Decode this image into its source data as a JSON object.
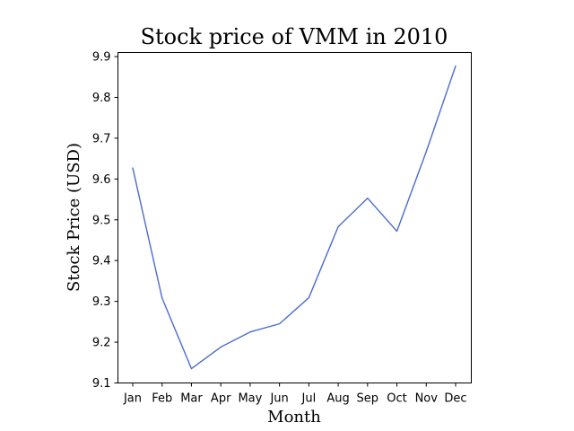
{
  "chart_data": {
    "type": "line",
    "title": "Stock price of VMM in 2010",
    "xlabel": "Month",
    "ylabel": "Stock Price (USD)",
    "categories": [
      "Jan",
      "Feb",
      "Mar",
      "Apr",
      "May",
      "Jun",
      "Jul",
      "Aug",
      "Sep",
      "Oct",
      "Nov",
      "Dec"
    ],
    "series": [
      {
        "values": [
          9.627,
          9.308,
          9.135,
          9.188,
          9.225,
          9.245,
          9.309,
          9.483,
          9.553,
          9.472,
          9.667,
          9.877
        ]
      }
    ],
    "ylim": [
      9.1,
      9.91
    ],
    "yticks": [
      "9.1",
      "9.2",
      "9.3",
      "9.4",
      "9.5",
      "9.6",
      "9.7",
      "9.8",
      "9.9"
    ],
    "grid": false,
    "legend": "none",
    "color": "#4a6ccf"
  }
}
